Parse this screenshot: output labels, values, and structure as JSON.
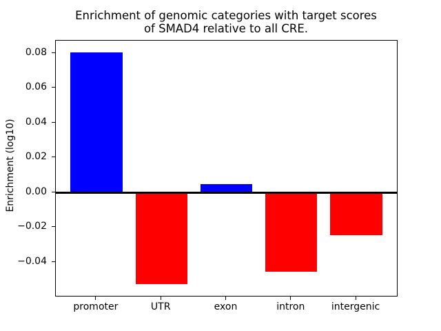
{
  "title": {
    "line1": "Enrichment of genomic categories with target scores",
    "line2": "of SMAD4 relative to all CRE."
  },
  "chart_data": {
    "type": "bar",
    "title": "Enrichment of genomic categories with target scores of SMAD4 relative to all CRE.",
    "xlabel": "",
    "ylabel": "Enrichment (log10)",
    "categories": [
      "promoter",
      "UTR",
      "exon",
      "intron",
      "intergenic"
    ],
    "values": [
      0.0805,
      -0.0527,
      0.0048,
      -0.0454,
      -0.0245
    ],
    "bar_colors": [
      "#0000ff",
      "#ff0000",
      "#0000ff",
      "#ff0000",
      "#ff0000"
    ],
    "positive_color": "#0000ff",
    "negative_color": "#ff0000",
    "bar_width": 0.8,
    "xlim": [
      -0.625,
      4.625
    ],
    "ylim": [
      -0.0594,
      0.0872
    ],
    "yticks": [
      {
        "value": 0.08,
        "label": "0.08"
      },
      {
        "value": 0.06,
        "label": "0.06"
      },
      {
        "value": 0.04,
        "label": "0.04"
      },
      {
        "value": 0.02,
        "label": "0.02"
      },
      {
        "value": 0.0,
        "label": "0.00"
      },
      {
        "value": -0.02,
        "label": "−0.02"
      },
      {
        "value": -0.04,
        "label": "−0.04"
      }
    ],
    "zero_line": {
      "value": 0,
      "color": "#000000",
      "linewidth": 3
    },
    "grid": false,
    "legend_position": "none",
    "plot_background": "#ffffff",
    "axis_color": "#000000"
  }
}
